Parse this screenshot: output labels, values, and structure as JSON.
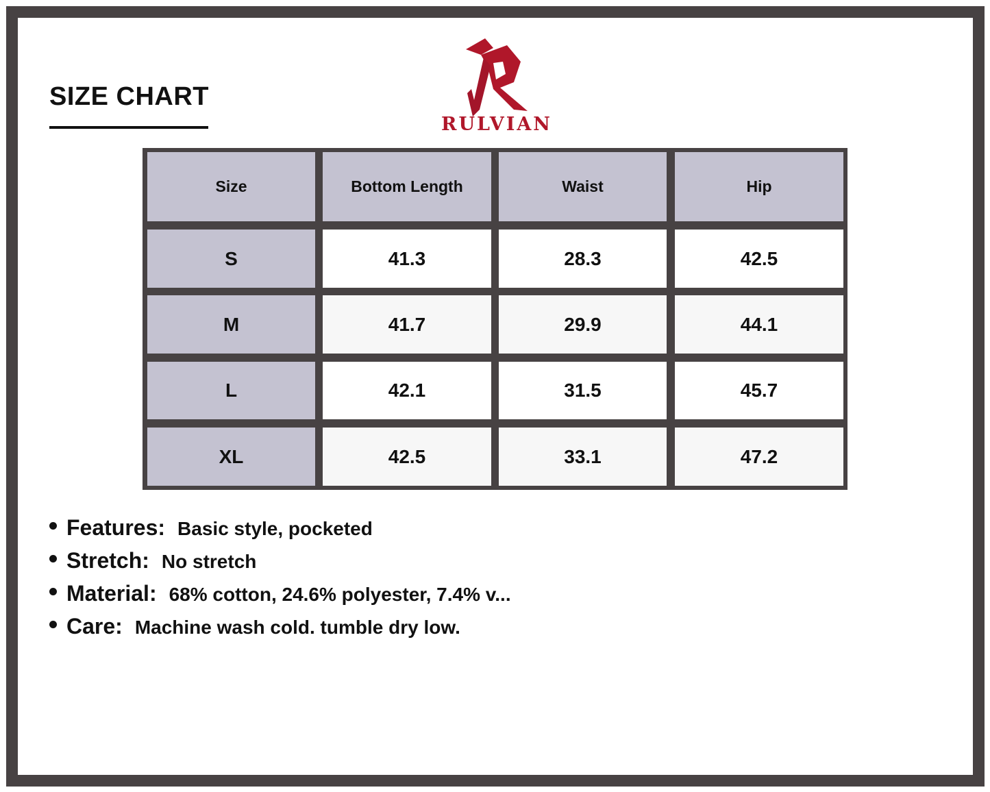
{
  "title": "SIZE CHART",
  "brand": {
    "name": "RULVIAN",
    "color": "#b0172a",
    "logo_icon": "rulvian-r-logo"
  },
  "colors": {
    "frame": "#474243",
    "header_fill": "#c4c2d1",
    "row_alt": "#f7f7f7"
  },
  "table": {
    "headers": [
      "Size",
      "Bottom Length",
      "Waist",
      "Hip"
    ],
    "rows": [
      [
        "S",
        "41.3",
        "28.3",
        "42.5"
      ],
      [
        "M",
        "41.7",
        "29.9",
        "44.1"
      ],
      [
        "L",
        "42.1",
        "31.5",
        "45.7"
      ],
      [
        "XL",
        "42.5",
        "33.1",
        "47.2"
      ]
    ]
  },
  "features": [
    {
      "label": "Features:",
      "value": "Basic style, pocketed"
    },
    {
      "label": "Stretch:",
      "value": "No stretch"
    },
    {
      "label": "Material:",
      "value": "68% cotton, 24.6% polyester, 7.4% v..."
    },
    {
      "label": "Care:",
      "value": "Machine wash cold. tumble dry low."
    }
  ]
}
